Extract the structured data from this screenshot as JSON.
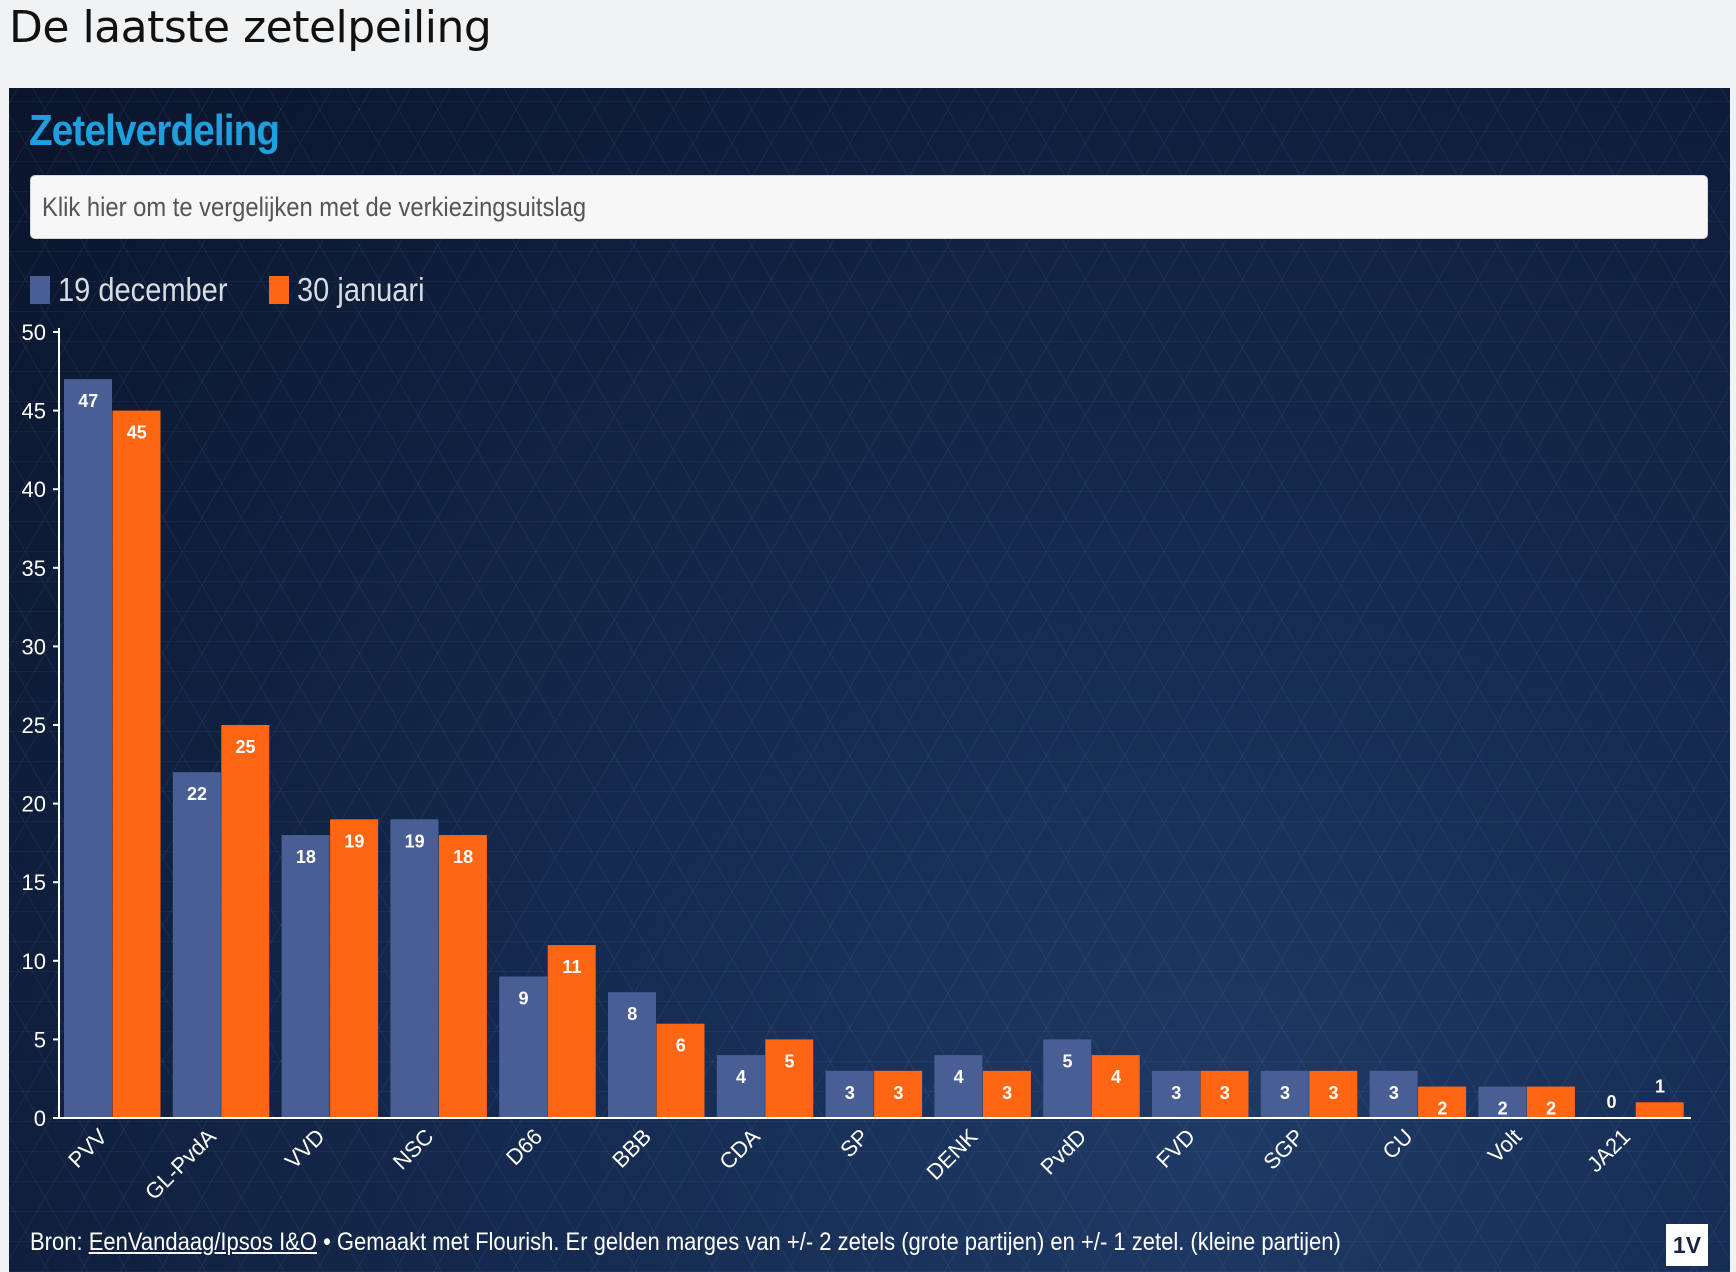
{
  "page": {
    "title": "De laatste zetelpeiling"
  },
  "chart_header": {
    "title": "Zetelverdeling",
    "compare_button": "Klik hier om te vergelijken met de verkiezingsuitslag"
  },
  "colors": {
    "series1": "#4a5e96",
    "series2": "#ff6613",
    "title": "#1e9fe0"
  },
  "footer": {
    "prefix": "Bron: ",
    "source_link": "EenVandaag/Ipsos I&O",
    "suffix": " • Gemaakt met Flourish. Er gelden marges van +/- 2 zetels (grote partijen) en +/- 1 zetel. (kleine partijen)",
    "logo": "1V"
  },
  "chart_data": {
    "type": "bar",
    "categories": [
      "PVV",
      "GL-PvdA",
      "VVD",
      "NSC",
      "D66",
      "BBB",
      "CDA",
      "SP",
      "DENK",
      "PvdD",
      "FVD",
      "SGP",
      "CU",
      "Volt",
      "JA21"
    ],
    "series": [
      {
        "name": "19 december",
        "values": [
          47,
          22,
          18,
          19,
          9,
          8,
          4,
          3,
          4,
          5,
          3,
          3,
          3,
          2,
          0
        ]
      },
      {
        "name": "30 januari",
        "values": [
          45,
          25,
          19,
          18,
          11,
          6,
          5,
          3,
          3,
          4,
          3,
          3,
          2,
          2,
          1
        ]
      }
    ],
    "ylim": [
      0,
      50
    ],
    "yticks": [
      0,
      5,
      10,
      15,
      20,
      25,
      30,
      35,
      40,
      45,
      50
    ],
    "legend_position": "top-left",
    "xlabel": "",
    "ylabel": ""
  }
}
